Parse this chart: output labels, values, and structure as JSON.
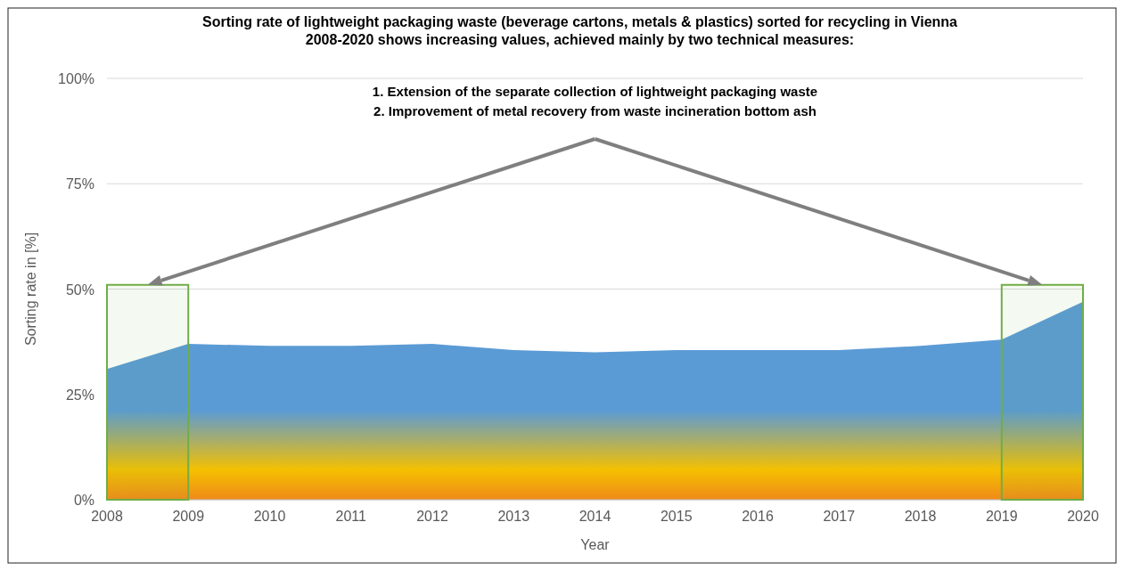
{
  "chart_data": {
    "type": "area",
    "title": "Sorting rate of lightweight packaging waste (beverage cartons, metals & plastics) sorted for recycling in Vienna\n2008-2020 shows increasing values, achieved mainly by two technical measures:",
    "xlabel": "Year",
    "ylabel": "Sorting rate in [%]",
    "x": [
      2008,
      2009,
      2010,
      2011,
      2012,
      2013,
      2014,
      2015,
      2016,
      2017,
      2018,
      2019,
      2020
    ],
    "series": [
      {
        "color": "#5b9bd5",
        "values": [
          31,
          37,
          36.5,
          36.5,
          37,
          35.5,
          35,
          35.5,
          35.5,
          35.5,
          36.5,
          38,
          47
        ]
      }
    ],
    "xlim": [
      2008,
      2020
    ],
    "xticks": [
      2008,
      2009,
      2010,
      2011,
      2012,
      2013,
      2014,
      2015,
      2016,
      2017,
      2018,
      2019,
      2020
    ],
    "ylim": [
      0,
      100
    ],
    "yticks": [
      {
        "value": 0,
        "label": "0%"
      },
      {
        "value": 25,
        "label": "25%"
      },
      {
        "value": 50,
        "label": "50%"
      },
      {
        "value": 75,
        "label": "75%"
      },
      {
        "value": 100,
        "label": "100%"
      }
    ],
    "grid": "y",
    "bands": [
      {
        "axis": "x",
        "from": 2008,
        "to": 2009,
        "color": "#70ad47"
      },
      {
        "axis": "x",
        "from": 2019,
        "to": 2020,
        "color": "#70ad47"
      }
    ],
    "annotations": [
      "1. Extension of the separate collection of lightweight packaging waste\n2. Improvement of metal recovery from waste incineration bottom ash"
    ]
  }
}
